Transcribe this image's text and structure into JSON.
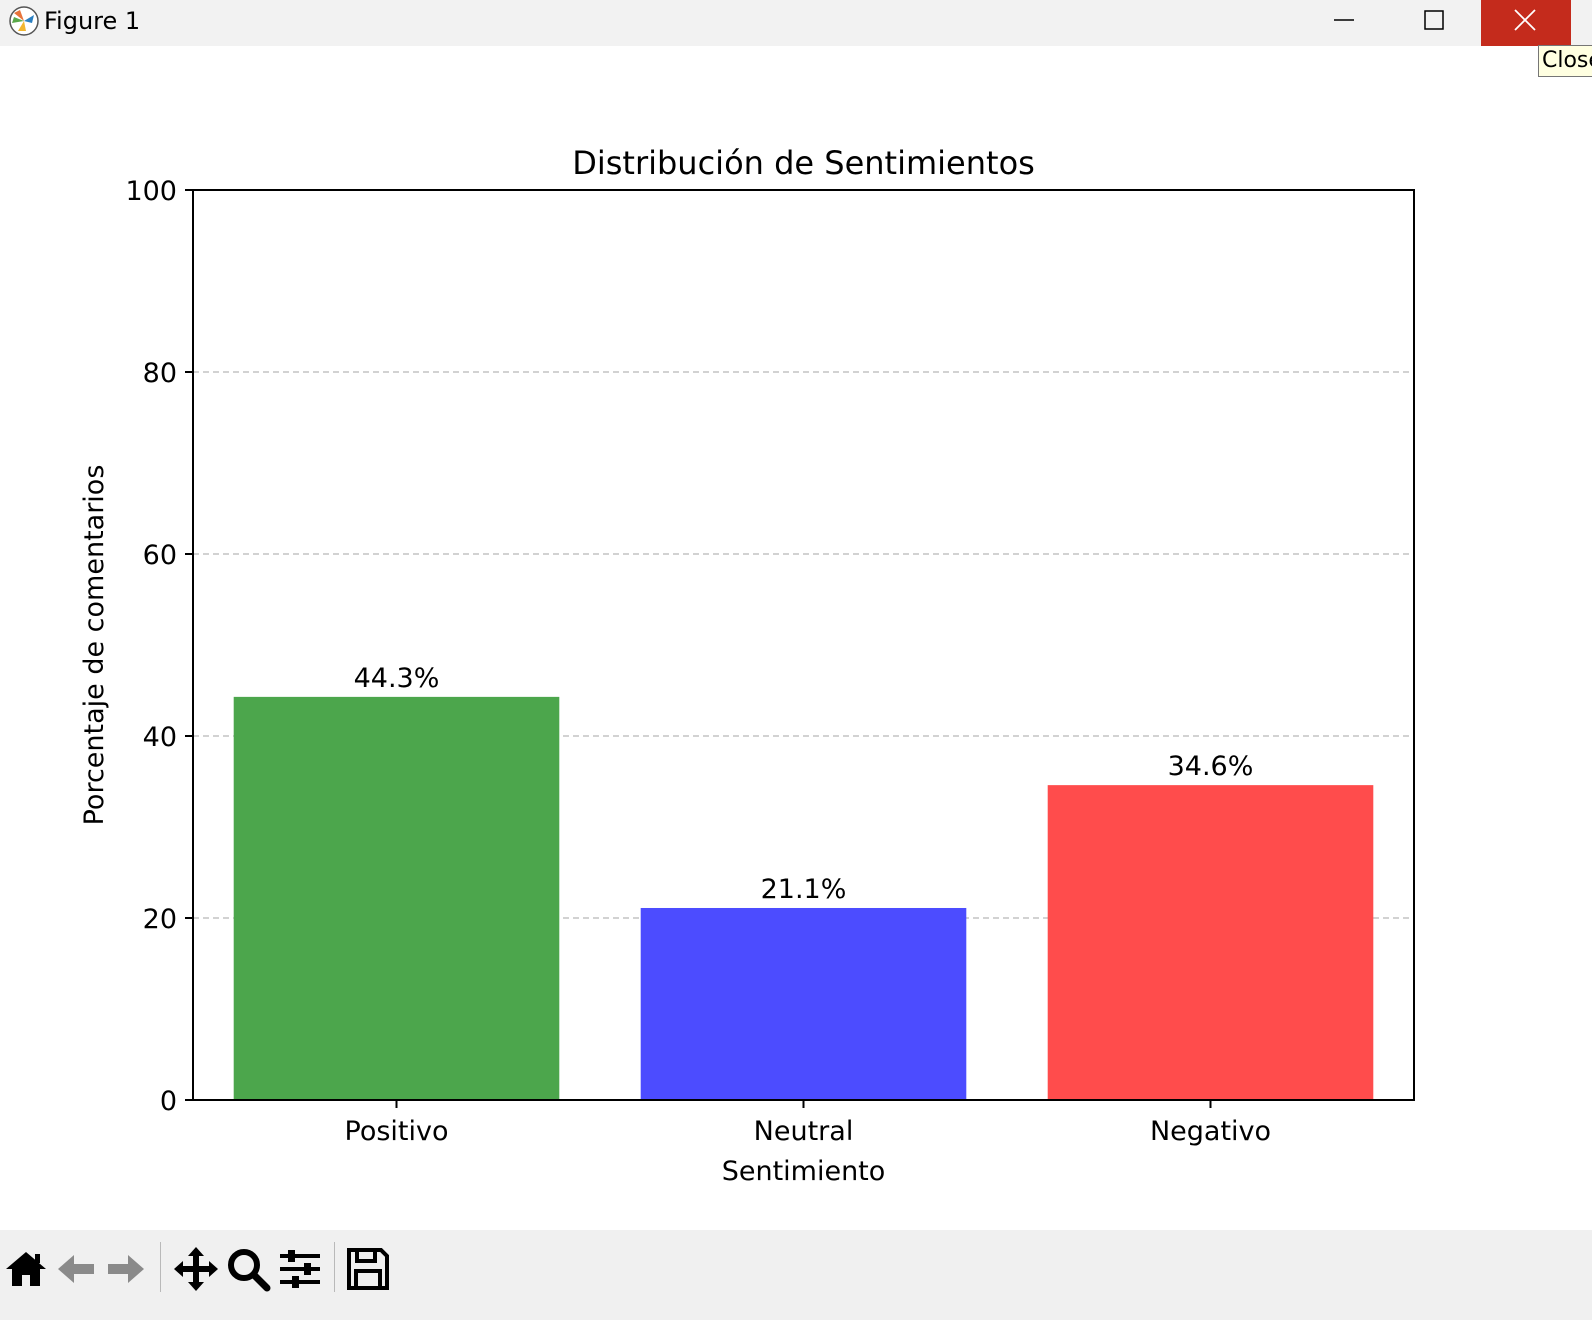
{
  "window": {
    "title": "Figure 1",
    "tooltip": "Close"
  },
  "chart_data": {
    "type": "bar",
    "title": "Distribución de Sentimientos",
    "xlabel": "Sentimiento",
    "ylabel": "Porcentaje de comentarios",
    "categories": [
      "Positivo",
      "Neutral",
      "Negativo"
    ],
    "values": [
      44.3,
      21.1,
      34.6
    ],
    "value_labels": [
      "44.3%",
      "21.1%",
      "34.6%"
    ],
    "colors": [
      "#4ca64c",
      "#4c4cff",
      "#ff4c4c"
    ],
    "ylim": [
      0,
      100
    ],
    "yticks": [
      0,
      20,
      40,
      60,
      80,
      100
    ],
    "grid": "y dashed"
  },
  "toolbar": {
    "buttons": [
      {
        "name": "home-icon"
      },
      {
        "name": "back-arrow-icon"
      },
      {
        "name": "forward-arrow-icon"
      },
      {
        "name": "pan-move-icon"
      },
      {
        "name": "zoom-magnifier-icon"
      },
      {
        "name": "configure-subplots-icon"
      },
      {
        "name": "save-floppy-icon"
      }
    ]
  }
}
